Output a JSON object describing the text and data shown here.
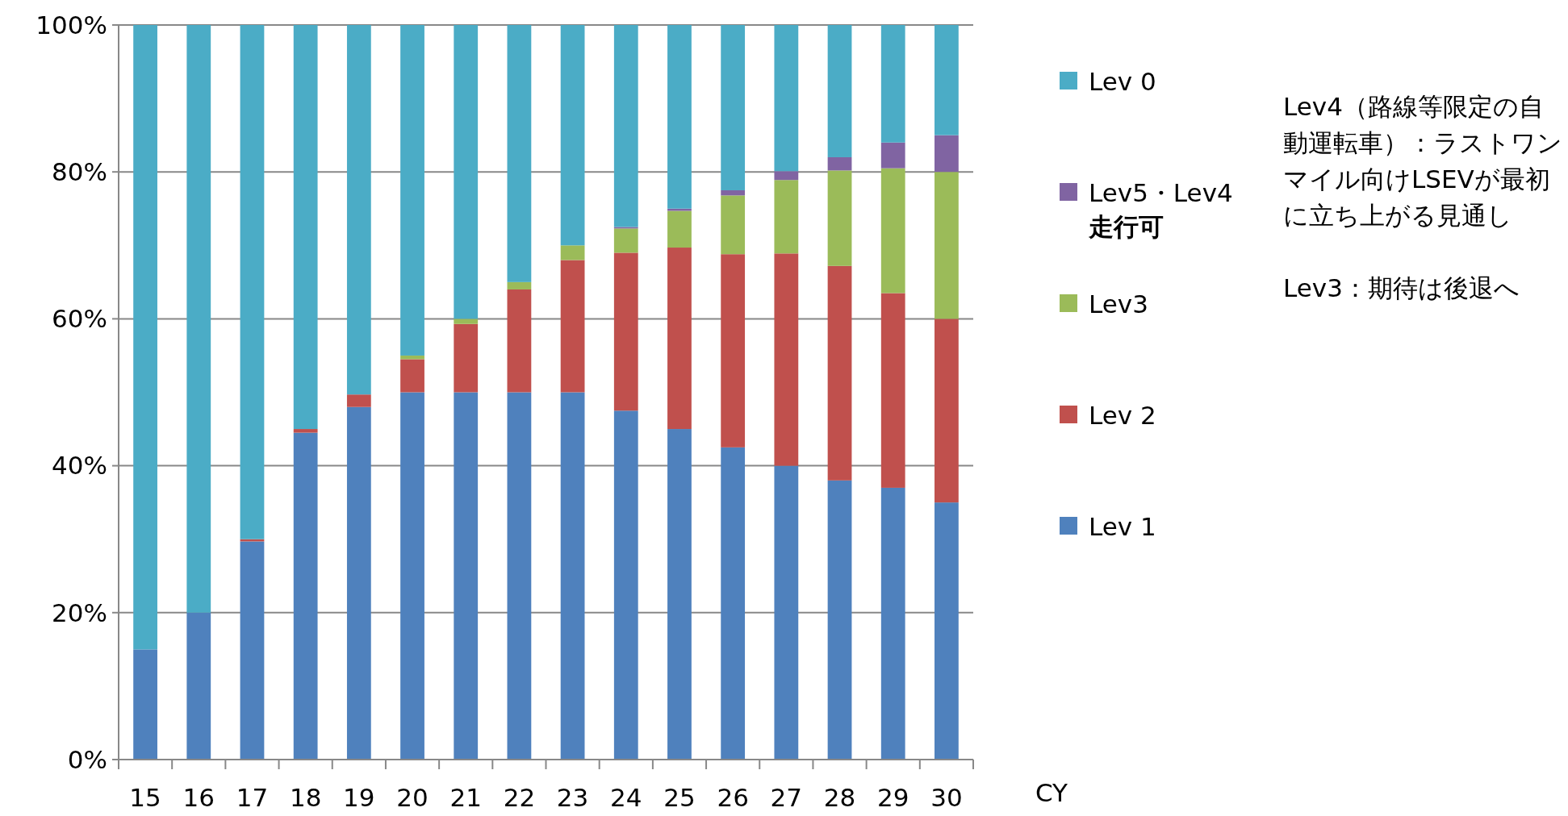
{
  "chart_data": {
    "type": "bar",
    "stacked": true,
    "categories": [
      "15",
      "16",
      "17",
      "18",
      "19",
      "20",
      "21",
      "22",
      "23",
      "24",
      "25",
      "26",
      "27",
      "28",
      "29",
      "30"
    ],
    "series": [
      {
        "name": "Lev 1",
        "color": "#4f81bd",
        "values": [
          15,
          20,
          29.7,
          44.5,
          48,
          50,
          50,
          50,
          50,
          47.5,
          45,
          42.5,
          40,
          38,
          37,
          35
        ]
      },
      {
        "name": "Lev 2",
        "color": "#c0504d",
        "values": [
          0,
          0,
          0.3,
          0.5,
          1.7,
          4.5,
          9.3,
          14,
          18,
          21.5,
          24.7,
          26.3,
          28.9,
          29.2,
          26.5,
          25
        ]
      },
      {
        "name": "Lev3",
        "color": "#9bbb59",
        "values": [
          0,
          0,
          0,
          0,
          0,
          0.5,
          0.7,
          1,
          2,
          3.3,
          5,
          8,
          10,
          13,
          17,
          20
        ]
      },
      {
        "name": "Lev5・Lev4 走行可",
        "color": "#8064a2",
        "values": [
          0,
          0,
          0,
          0,
          0,
          0,
          0,
          0,
          0,
          0.2,
          0.3,
          0.7,
          1.2,
          1.8,
          3.5,
          5
        ]
      },
      {
        "name": "Lev 0",
        "color": "#4bacc6",
        "values": [
          85,
          80,
          70,
          55,
          50.3,
          45,
          40,
          35,
          30,
          27.5,
          25,
          22.5,
          19.9,
          18,
          16,
          15
        ]
      }
    ],
    "ylim": [
      0,
      100
    ],
    "yticks": [
      {
        "value": 0,
        "label": "0%"
      },
      {
        "value": 20,
        "label": "20%"
      },
      {
        "value": 40,
        "label": "40%"
      },
      {
        "value": 60,
        "label": "60%"
      },
      {
        "value": 80,
        "label": "80%"
      },
      {
        "value": 100,
        "label": "100%"
      }
    ],
    "grid": "y",
    "legend": "right",
    "xlabel": "CY",
    "annotations": [
      "Lev4（路線等限定の自動運転車）：ラストワンマイル向けLSEVが最初に立ち上がる見通し",
      "Lev3：期待は後退へ"
    ]
  }
}
